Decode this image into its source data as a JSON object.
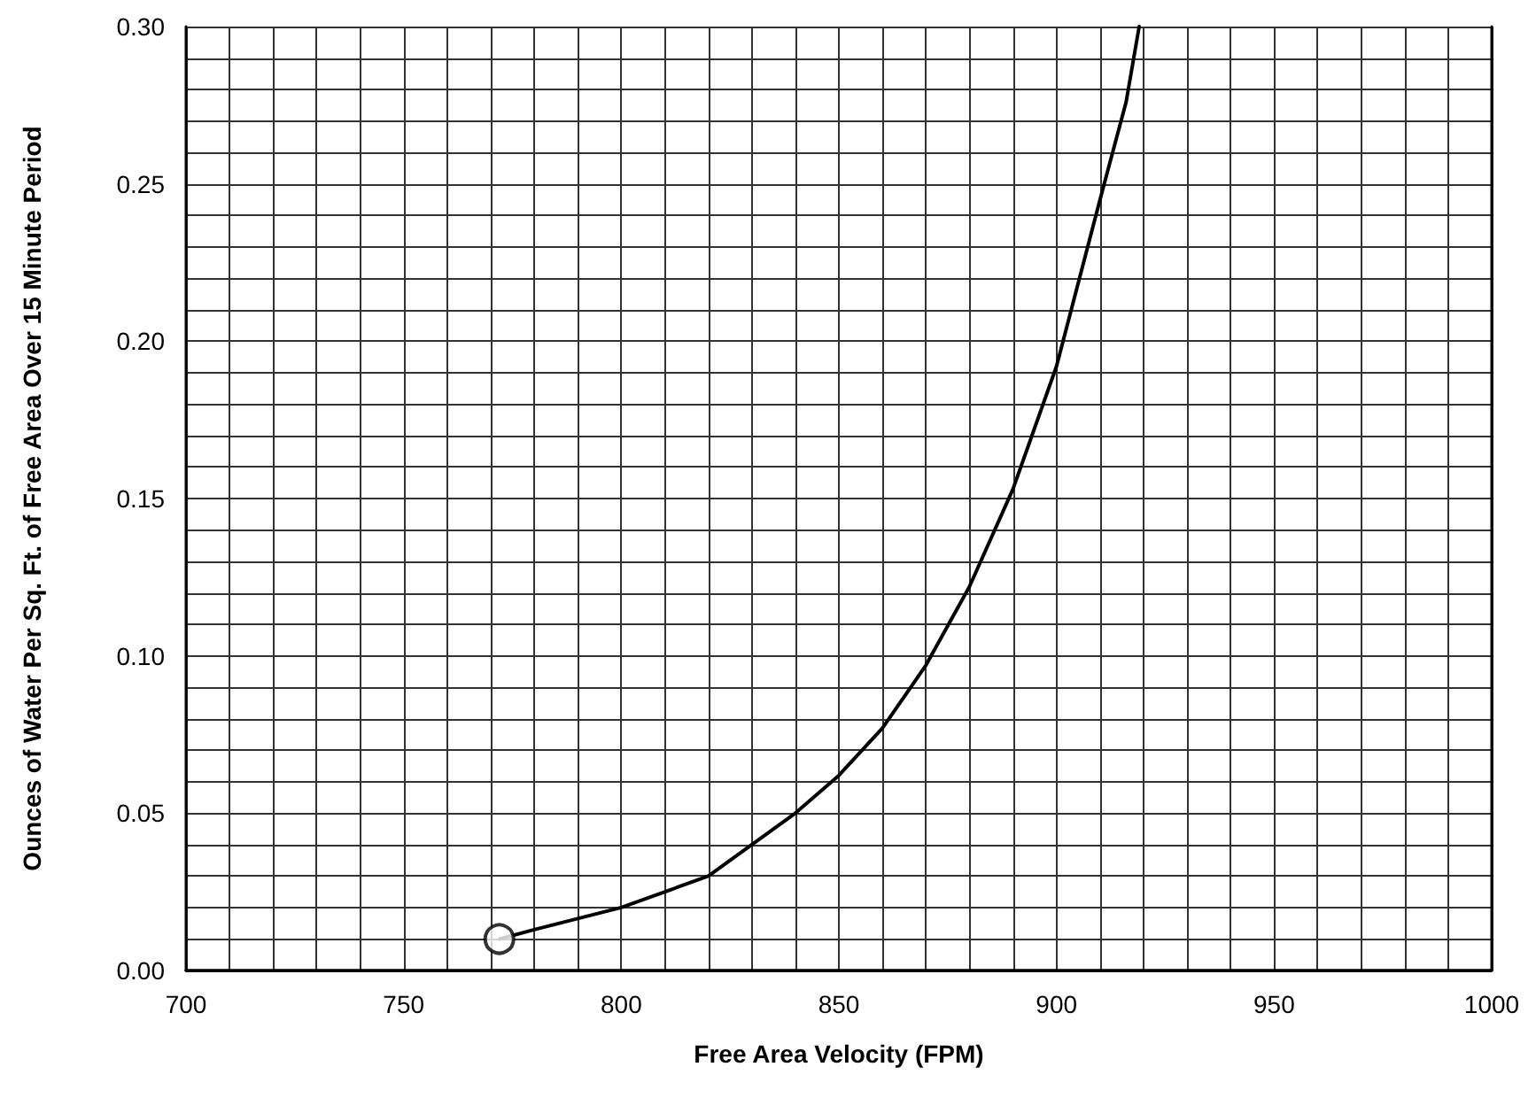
{
  "chart_data": {
    "type": "line",
    "xlabel": "Free Area Velocity (FPM)",
    "ylabel": "Ounces of Water Per Sq. Ft. of Free Area Over 15 Minute Period",
    "xlim": [
      700,
      1000
    ],
    "ylim": [
      0,
      0.3
    ],
    "xticks": [
      700,
      {
        "value": 710,
        "label": null
      },
      {
        "value": 720,
        "label": null
      },
      {
        "value": 730,
        "label": null
      },
      {
        "value": 740,
        "label": null
      },
      750,
      {
        "value": 760,
        "label": null
      },
      {
        "value": 770,
        "label": null
      },
      {
        "value": 780,
        "label": null
      },
      {
        "value": 790,
        "label": null
      },
      800,
      {
        "value": 810,
        "label": null
      },
      {
        "value": 820,
        "label": null
      },
      {
        "value": 830,
        "label": null
      },
      {
        "value": 840,
        "label": null
      },
      850,
      {
        "value": 860,
        "label": null
      },
      {
        "value": 870,
        "label": null
      },
      {
        "value": 880,
        "label": null
      },
      {
        "value": 890,
        "label": null
      },
      900,
      {
        "value": 910,
        "label": null
      },
      {
        "value": 920,
        "label": null
      },
      {
        "value": 930,
        "label": null
      },
      {
        "value": 940,
        "label": null
      },
      950,
      {
        "value": 960,
        "label": null
      },
      {
        "value": 970,
        "label": null
      },
      {
        "value": 980,
        "label": null
      },
      {
        "value": 990,
        "label": null
      },
      1000
    ],
    "yticks": [
      {
        "value": 0,
        "label": "0.00"
      },
      {
        "value": 0.01,
        "label": null
      },
      {
        "value": 0.02,
        "label": null
      },
      {
        "value": 0.03,
        "label": null
      },
      {
        "value": 0.04,
        "label": null
      },
      {
        "value": 0.05,
        "label": "0.05"
      },
      {
        "value": 0.06,
        "label": null
      },
      {
        "value": 0.07,
        "label": null
      },
      {
        "value": 0.08,
        "label": null
      },
      {
        "value": 0.09,
        "label": null
      },
      {
        "value": 0.1,
        "label": "0.10"
      },
      {
        "value": 0.11,
        "label": null
      },
      {
        "value": 0.12,
        "label": null
      },
      {
        "value": 0.13,
        "label": null
      },
      {
        "value": 0.14,
        "label": null
      },
      {
        "value": 0.15,
        "label": "0.15"
      },
      {
        "value": 0.16,
        "label": null
      },
      {
        "value": 0.17,
        "label": null
      },
      {
        "value": 0.18,
        "label": null
      },
      {
        "value": 0.19,
        "label": null
      },
      {
        "value": 0.2,
        "label": "0.20"
      },
      {
        "value": 0.21,
        "label": null
      },
      {
        "value": 0.22,
        "label": null
      },
      {
        "value": 0.23,
        "label": null
      },
      {
        "value": 0.24,
        "label": null
      },
      {
        "value": 0.25,
        "label": "0.25"
      },
      {
        "value": 0.26,
        "label": null
      },
      {
        "value": 0.27,
        "label": null
      },
      {
        "value": 0.28,
        "label": null
      },
      {
        "value": 0.29,
        "label": null
      },
      {
        "value": 0.3,
        "label": "0.30"
      }
    ],
    "grid": true,
    "marker": "none",
    "line_style": "solid",
    "series": [
      {
        "color": "#000000",
        "x": [
          772,
          780,
          800,
          820,
          840,
          850,
          860,
          870,
          880,
          890,
          900,
          910,
          916,
          919
        ],
        "values": [
          0.01,
          0.013,
          0.02,
          0.03,
          0.05,
          0.062,
          0.077,
          0.097,
          0.122,
          0.153,
          0.192,
          0.245,
          0.276,
          0.3
        ]
      },
      {
        "type": "scatter",
        "color": "#000000",
        "marker": "circle",
        "x": [
          772
        ],
        "values": [
          0.01
        ]
      }
    ]
  }
}
